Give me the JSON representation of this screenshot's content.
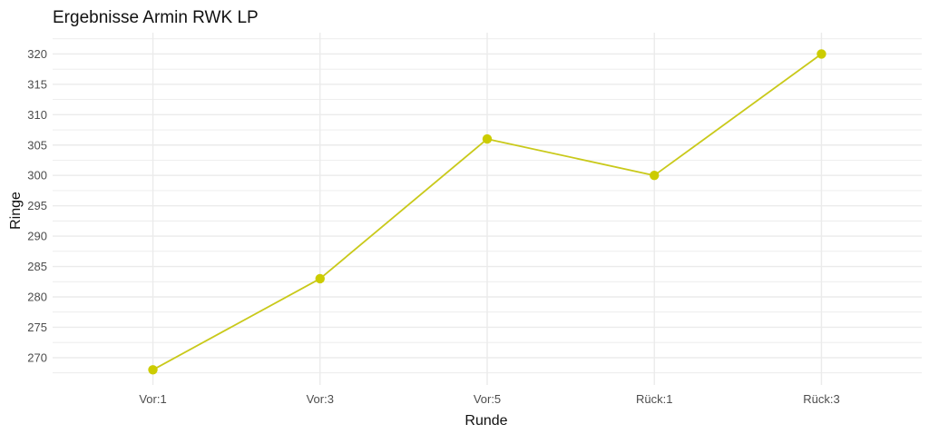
{
  "chart_data": {
    "type": "line",
    "title": "Ergebnisse Armin RWK LP",
    "xlabel": "Runde",
    "ylabel": "Ringe",
    "categories": [
      "Vor:1",
      "Vor:3",
      "Vor:5",
      "Rück:1",
      "Rück:3"
    ],
    "series": [
      {
        "values": [
          268,
          283,
          306,
          300,
          320
        ]
      }
    ],
    "ylim": [
      265.5,
      323.5
    ],
    "yticks": [
      270,
      275,
      280,
      285,
      290,
      295,
      300,
      305,
      310,
      315,
      320
    ],
    "grid": true,
    "colors": {
      "line": "#c9c91a",
      "point": "#cccc00",
      "grid": "#ebebeb"
    }
  }
}
